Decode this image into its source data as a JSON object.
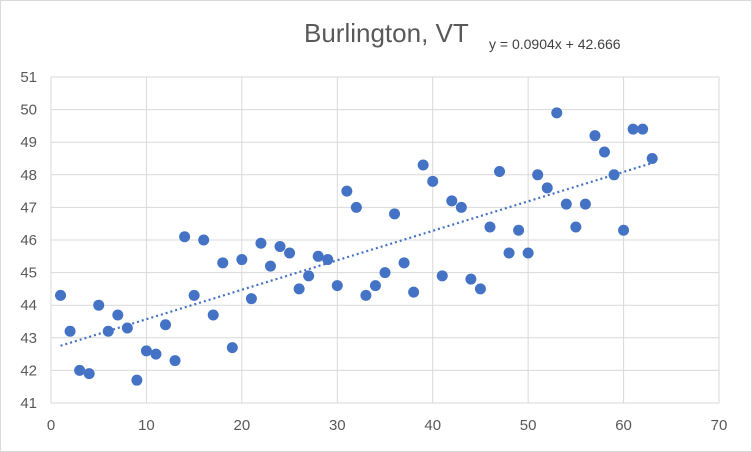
{
  "chart_data": {
    "type": "scatter",
    "title": "Burlington, VT",
    "xlabel": "",
    "ylabel": "",
    "xlim": [
      0,
      70
    ],
    "ylim": [
      41,
      51
    ],
    "xticks": [
      0,
      10,
      20,
      30,
      40,
      50,
      60,
      70
    ],
    "yticks": [
      41,
      42,
      43,
      44,
      45,
      46,
      47,
      48,
      49,
      50,
      51
    ],
    "grid": true,
    "legend": "none",
    "colors": {
      "marker": "#4472c4",
      "trendline": "#4472c4",
      "grid": "#d9d9d9"
    },
    "trendline": {
      "type": "linear",
      "style": "dotted",
      "slope": 0.0904,
      "intercept": 42.666,
      "equation": "y = 0.0904x + 42.666"
    },
    "series": [
      {
        "x": [
          1,
          2,
          3,
          4,
          5,
          6,
          7,
          8,
          9,
          10,
          11,
          12,
          13,
          14,
          15,
          16,
          17,
          18,
          19,
          20,
          21,
          22,
          23,
          24,
          25,
          26,
          27,
          28,
          29,
          30,
          31,
          32,
          33,
          34,
          35,
          36,
          37,
          38,
          39,
          40,
          41,
          42,
          43,
          44,
          45,
          46,
          47,
          48,
          49,
          50,
          51,
          52,
          53,
          54,
          55,
          56,
          57,
          58,
          59,
          60,
          61,
          62,
          63
        ],
        "y": [
          44.3,
          43.2,
          42.0,
          41.9,
          44.0,
          43.2,
          43.7,
          43.3,
          41.7,
          42.6,
          42.5,
          43.4,
          42.3,
          46.1,
          44.3,
          46.0,
          43.7,
          45.3,
          42.7,
          45.4,
          44.2,
          45.9,
          45.2,
          45.8,
          45.6,
          44.5,
          44.9,
          45.5,
          45.4,
          44.6,
          47.5,
          47.0,
          44.3,
          44.6,
          45.0,
          46.8,
          45.3,
          44.4,
          48.3,
          47.8,
          44.9,
          47.2,
          47.0,
          44.8,
          44.5,
          46.4,
          48.1,
          45.6,
          46.3,
          45.6,
          48.0,
          47.6,
          49.9,
          47.1,
          46.4,
          47.1,
          49.2,
          48.7,
          48.0,
          46.3,
          49.4,
          49.4,
          48.5
        ]
      }
    ]
  }
}
